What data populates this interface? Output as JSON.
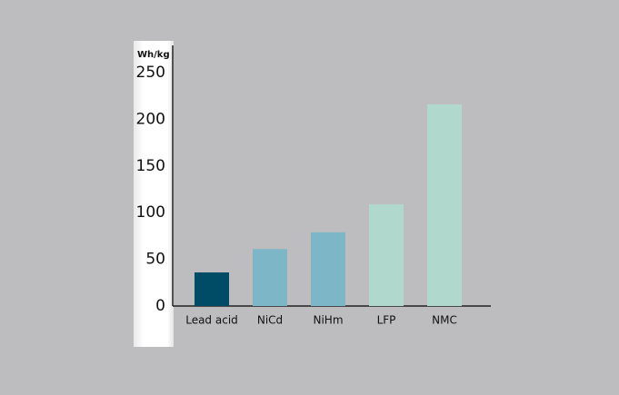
{
  "chart_data": {
    "type": "bar",
    "y_unit": "Wh/kg",
    "categories": [
      "Lead acid",
      "NiCd",
      "NiHm",
      "LFP",
      "NMC"
    ],
    "values": [
      36,
      61,
      79,
      109,
      216
    ],
    "colors": [
      "#004b66",
      "#7db6c7",
      "#7db6c7",
      "#b1d8cc",
      "#b1d8cc"
    ],
    "ylim": [
      0,
      250
    ],
    "yticks": [
      0,
      50,
      100,
      150,
      200,
      250
    ],
    "grid": false
  }
}
